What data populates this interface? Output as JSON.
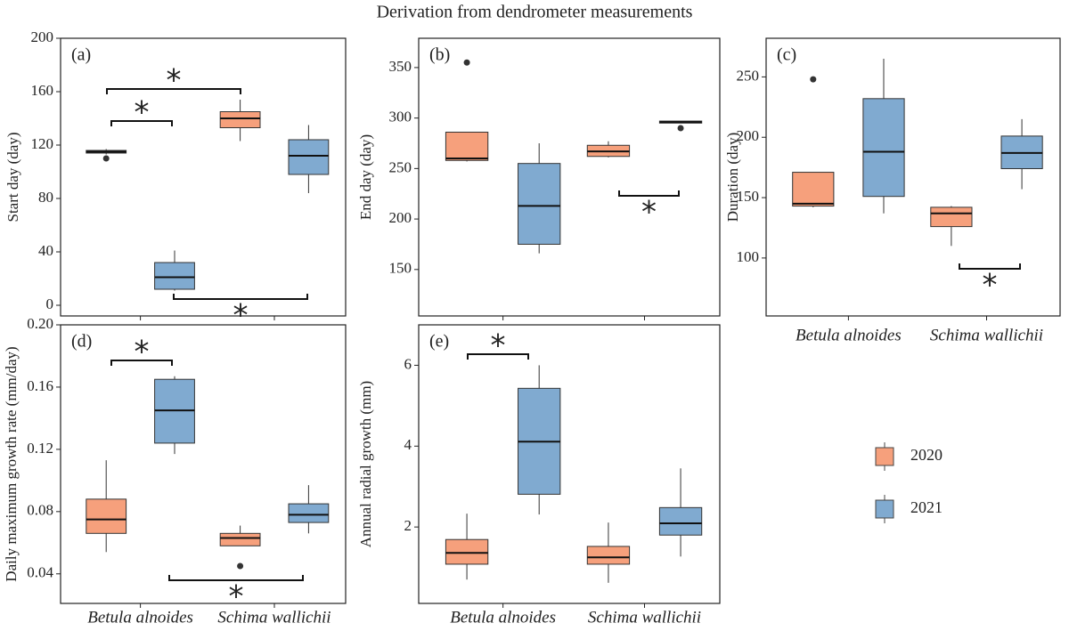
{
  "chart_data": [
    {
      "type": "box",
      "title": "Derivation from dendrometer measurements",
      "panel": "(a)",
      "ylabel": "Start day (day)",
      "ylim": [
        -8,
        200
      ],
      "yticks": [
        0,
        40,
        80,
        120,
        160,
        200
      ],
      "series": [
        {
          "name": "2020",
          "color": "#f6a07c",
          "values": [
            {
              "min": 113,
              "q1": 114,
              "median": 115,
              "q3": 116,
              "max": 117,
              "outliers": [
                110
              ]
            },
            {
              "min": 123,
              "q1": 133,
              "median": 140,
              "q3": 145,
              "max": 154,
              "outliers": []
            }
          ]
        },
        {
          "name": "2021",
          "color": "#80aad0",
          "values": [
            {
              "min": 11,
              "q1": 12,
              "median": 21,
              "q3": 32,
              "max": 41,
              "outliers": []
            },
            {
              "min": 84,
              "q1": 98,
              "median": 112,
              "q3": 124,
              "max": 135,
              "outliers": []
            }
          ]
        }
      ],
      "annotations": [
        "*",
        "*",
        "*"
      ]
    },
    {
      "type": "box",
      "panel": "(b)",
      "ylabel": "End day (day)",
      "ylim": [
        104,
        379
      ],
      "yticks": [
        150,
        200,
        250,
        300,
        350
      ],
      "series": [
        {
          "name": "2020",
          "color": "#f6a07c",
          "values": [
            {
              "min": 257,
              "q1": 258,
              "median": 260,
              "q3": 286,
              "max": 286,
              "outliers": [
                355
              ]
            },
            {
              "min": 261,
              "q1": 262,
              "median": 267,
              "q3": 273,
              "max": 277,
              "outliers": []
            }
          ]
        },
        {
          "name": "2021",
          "color": "#80aad0",
          "values": [
            {
              "min": 166,
              "q1": 175,
              "median": 213,
              "q3": 255,
              "max": 275,
              "outliers": []
            },
            {
              "min": 295,
              "q1": 295,
              "median": 296,
              "q3": 297,
              "max": 297,
              "outliers": [
                290
              ]
            }
          ]
        }
      ],
      "annotations": [
        "*"
      ]
    },
    {
      "type": "box",
      "panel": "(c)",
      "ylabel": "Duration (day)",
      "categories": [
        "Betula alnoides",
        "Schima wallichii"
      ],
      "ylim": [
        52,
        282
      ],
      "yticks": [
        100,
        150,
        200,
        250
      ],
      "series": [
        {
          "name": "2020",
          "color": "#f6a07c",
          "values": [
            {
              "min": 142,
              "q1": 143,
              "median": 145,
              "q3": 171,
              "max": 171,
              "outliers": [
                248
              ]
            },
            {
              "min": 110,
              "q1": 126,
              "median": 137,
              "q3": 142,
              "max": 143,
              "outliers": []
            }
          ]
        },
        {
          "name": "2021",
          "color": "#80aad0",
          "values": [
            {
              "min": 137,
              "q1": 151,
              "median": 188,
              "q3": 232,
              "max": 265,
              "outliers": []
            },
            {
              "min": 157,
              "q1": 174,
              "median": 187,
              "q3": 201,
              "max": 215,
              "outliers": []
            }
          ]
        }
      ],
      "annotations": [
        "*"
      ]
    },
    {
      "type": "box",
      "panel": "(d)",
      "ylabel": "Daily maximum growth rate (mm/day)",
      "categories": [
        "Betula alnoides",
        "Schima wallichii"
      ],
      "ylim": [
        0.021,
        0.2
      ],
      "yticks": [
        0.04,
        0.08,
        0.12,
        0.16,
        {
          "value": 0.2,
          "label": "0.20"
        }
      ],
      "series": [
        {
          "name": "2020",
          "color": "#f6a07c",
          "values": [
            {
              "min": 0.054,
              "q1": 0.066,
              "median": 0.075,
              "q3": 0.088,
              "max": 0.113,
              "outliers": []
            },
            {
              "min": 0.058,
              "q1": 0.058,
              "median": 0.063,
              "q3": 0.066,
              "max": 0.071,
              "outliers": [
                0.045
              ]
            }
          ]
        },
        {
          "name": "2021",
          "color": "#80aad0",
          "values": [
            {
              "min": 0.117,
              "q1": 0.124,
              "median": 0.145,
              "q3": 0.165,
              "max": 0.167,
              "outliers": []
            },
            {
              "min": 0.066,
              "q1": 0.073,
              "median": 0.078,
              "q3": 0.085,
              "max": 0.097,
              "outliers": []
            }
          ]
        }
      ],
      "annotations": [
        "*",
        "*"
      ]
    },
    {
      "type": "box",
      "panel": "(e)",
      "ylabel": "Annual radial growth (mm)",
      "categories": [
        "Betula alnoides",
        "Schima wallichii"
      ],
      "ylim": [
        0.11,
        7.0
      ],
      "yticks": [
        2,
        4,
        6
      ],
      "series": [
        {
          "name": "2020",
          "color": "#f6a07c",
          "values": [
            {
              "min": 0.7,
              "q1": 1.08,
              "median": 1.36,
              "q3": 1.69,
              "max": 2.33,
              "outliers": []
            },
            {
              "min": 0.62,
              "q1": 1.08,
              "median": 1.25,
              "q3": 1.52,
              "max": 2.11,
              "outliers": []
            }
          ]
        },
        {
          "name": "2021",
          "color": "#80aad0",
          "values": [
            {
              "min": 2.31,
              "q1": 2.81,
              "median": 4.11,
              "q3": 5.43,
              "max": 6.0,
              "outliers": []
            },
            {
              "min": 1.27,
              "q1": 1.8,
              "median": 2.09,
              "q3": 2.48,
              "max": 3.45,
              "outliers": []
            }
          ]
        }
      ],
      "annotations": [
        "*"
      ]
    }
  ]
}
